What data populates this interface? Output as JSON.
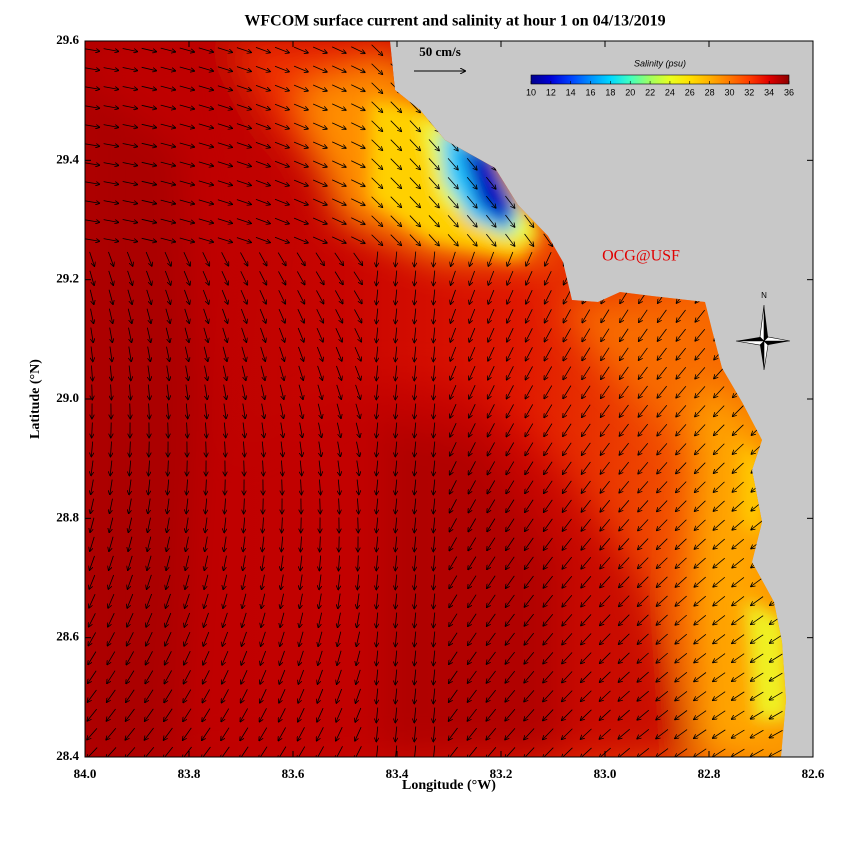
{
  "chart_data": {
    "type": "map",
    "title": "WFCOM surface current and salinity at hour 1 on 04/13/2019",
    "xlabel": "Longitude (°W)",
    "ylabel": "Latitude (°N)",
    "xlim": [
      84,
      82.6
    ],
    "ylim": [
      28.4,
      29.6
    ],
    "xticks": [
      {
        "value": 84,
        "label": "84.0"
      },
      83.8,
      83.6,
      83.4,
      83.2,
      {
        "value": 83,
        "label": "83.0"
      },
      82.8,
      82.6
    ],
    "yticks": [
      28.4,
      28.6,
      28.8,
      {
        "value": 29,
        "label": "29.0"
      },
      29.2,
      29.4,
      29.6
    ],
    "scale_label": "50 cm/s",
    "credit": "OCG@USF",
    "north_label": "N",
    "colorbar": {
      "label": "Salinity (psu)",
      "lim": [
        10,
        36
      ],
      "ticks": [
        10,
        12,
        14,
        16,
        18,
        20,
        22,
        24,
        26,
        28,
        30,
        32,
        34,
        36
      ],
      "colors": [
        "#00008c",
        "#0000d8",
        "#0040ff",
        "#0090ff",
        "#00d8ff",
        "#40ffc0",
        "#a0ff60",
        "#e8ff20",
        "#ffe000",
        "#ffb000",
        "#ff7800",
        "#ff3c00",
        "#e00000",
        "#8c0000"
      ]
    }
  }
}
